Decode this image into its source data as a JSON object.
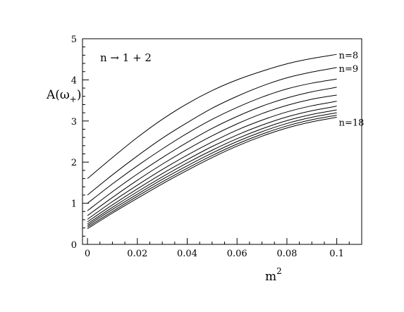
{
  "chart_data": {
    "type": "line",
    "title": "",
    "xlabel": "m",
    "xlabel_sup": "2",
    "ylabel": "A(ω",
    "ylabel_sub": "+",
    "ylabel_close": ")",
    "annotation": "n → 1 + 2",
    "xlim": [
      -0.002,
      0.11
    ],
    "ylim": [
      0,
      5
    ],
    "x_ticks": [
      0,
      0.02,
      0.04,
      0.06,
      0.08,
      0.1
    ],
    "x_tick_labels": [
      "0",
      "0.02",
      "0.04",
      "0.06",
      "0.08",
      "0.1"
    ],
    "y_ticks": [
      0,
      1,
      2,
      3,
      4,
      5
    ],
    "y_tick_labels": [
      "0",
      "1",
      "2",
      "3",
      "4",
      "5"
    ],
    "grid": false,
    "x": [
      0,
      0.01,
      0.02,
      0.03,
      0.04,
      0.05,
      0.06,
      0.07,
      0.08,
      0.09,
      0.1
    ],
    "series": [
      {
        "name": "n=8",
        "values": [
          1.6,
          2.11,
          2.6,
          3.04,
          3.42,
          3.74,
          4.0,
          4.21,
          4.39,
          4.52,
          4.62
        ]
      },
      {
        "name": "n=9",
        "values": [
          1.2,
          1.69,
          2.15,
          2.58,
          2.96,
          3.31,
          3.6,
          3.85,
          4.05,
          4.19,
          4.3
        ]
      },
      {
        "name": "",
        "values": [
          1.0,
          1.47,
          1.91,
          2.32,
          2.7,
          3.04,
          3.33,
          3.58,
          3.78,
          3.92,
          4.02
        ]
      },
      {
        "name": "",
        "values": [
          0.82,
          1.28,
          1.71,
          2.11,
          2.48,
          2.82,
          3.11,
          3.36,
          3.56,
          3.71,
          3.82
        ]
      },
      {
        "name": "",
        "values": [
          0.7,
          1.14,
          1.56,
          1.95,
          2.31,
          2.64,
          2.93,
          3.18,
          3.38,
          3.53,
          3.63
        ]
      },
      {
        "name": "",
        "values": [
          0.61,
          1.04,
          1.44,
          1.82,
          2.17,
          2.49,
          2.78,
          3.02,
          3.22,
          3.37,
          3.48
        ]
      },
      {
        "name": "",
        "values": [
          0.55,
          0.96,
          1.35,
          1.72,
          2.06,
          2.38,
          2.66,
          2.9,
          3.1,
          3.25,
          3.36
        ]
      },
      {
        "name": "",
        "values": [
          0.5,
          0.9,
          1.28,
          1.64,
          1.98,
          2.29,
          2.57,
          2.81,
          3.01,
          3.16,
          3.27
        ]
      },
      {
        "name": "",
        "values": [
          0.46,
          0.85,
          1.22,
          1.58,
          1.91,
          2.22,
          2.5,
          2.74,
          2.94,
          3.09,
          3.2
        ]
      },
      {
        "name": "",
        "values": [
          0.42,
          0.8,
          1.17,
          1.52,
          1.85,
          2.16,
          2.44,
          2.68,
          2.88,
          3.03,
          3.14
        ]
      },
      {
        "name": "n=18",
        "values": [
          0.38,
          0.76,
          1.12,
          1.47,
          1.8,
          2.11,
          2.39,
          2.63,
          2.83,
          2.98,
          3.09
        ]
      }
    ]
  }
}
